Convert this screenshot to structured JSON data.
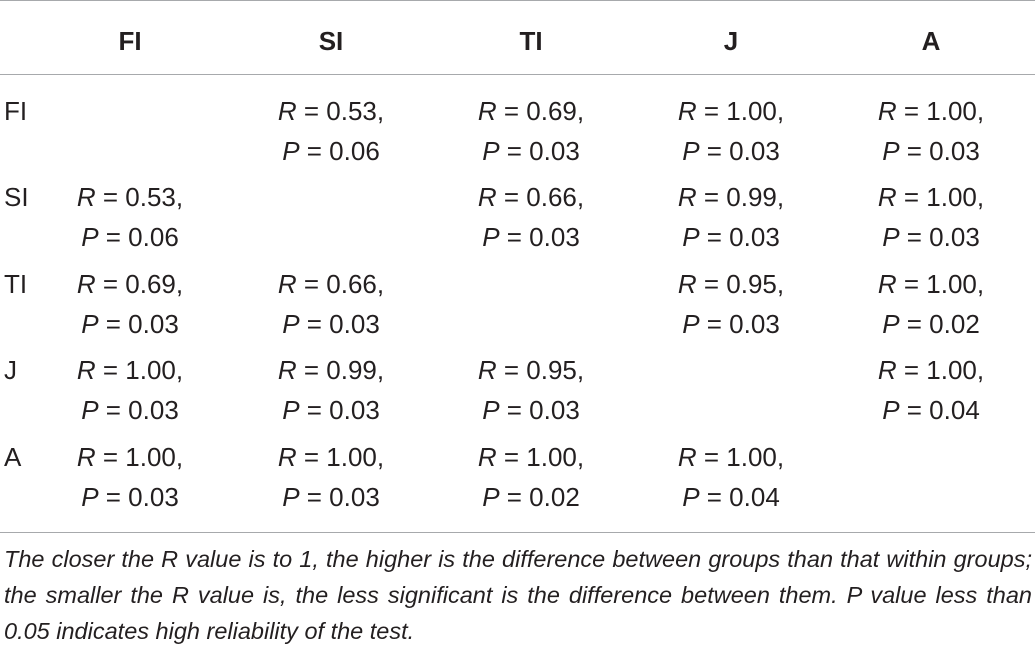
{
  "table": {
    "headers": [
      "FI",
      "SI",
      "TI",
      "J",
      "A"
    ],
    "rows": [
      {
        "label": "FI",
        "cells": [
          null,
          {
            "r": "R = 0.53,",
            "p": "P = 0.06"
          },
          {
            "r": "R = 0.69,",
            "p": "P = 0.03"
          },
          {
            "r": "R = 1.00,",
            "p": "P = 0.03"
          },
          {
            "r": "R = 1.00,",
            "p": "P = 0.03"
          }
        ]
      },
      {
        "label": "SI",
        "cells": [
          {
            "r": "R = 0.53,",
            "p": "P = 0.06"
          },
          null,
          {
            "r": "R = 0.66,",
            "p": "P = 0.03"
          },
          {
            "r": "R = 0.99,",
            "p": "P = 0.03"
          },
          {
            "r": "R = 1.00,",
            "p": "P = 0.03"
          }
        ]
      },
      {
        "label": "TI",
        "cells": [
          {
            "r": "R = 0.69,",
            "p": "P = 0.03"
          },
          {
            "r": "R = 0.66,",
            "p": "P = 0.03"
          },
          null,
          {
            "r": "R = 0.95,",
            "p": "P = 0.03"
          },
          {
            "r": "R = 1.00,",
            "p": "P = 0.02"
          }
        ]
      },
      {
        "label": "J",
        "cells": [
          {
            "r": "R = 1.00,",
            "p": "P = 0.03"
          },
          {
            "r": "R = 0.99,",
            "p": "P = 0.03"
          },
          {
            "r": "R = 0.95,",
            "p": "P = 0.03"
          },
          null,
          {
            "r": "R = 1.00,",
            "p": "P = 0.04"
          }
        ]
      },
      {
        "label": "A",
        "cells": [
          {
            "r": "R = 1.00,",
            "p": "P = 0.03"
          },
          {
            "r": "R = 1.00,",
            "p": "P = 0.03"
          },
          {
            "r": "R = 1.00,",
            "p": "P = 0.02"
          },
          {
            "r": "R = 1.00,",
            "p": "P = 0.04"
          },
          null
        ]
      }
    ]
  },
  "footnote": "The closer the R value is to 1, the higher is the difference between groups than that within groups; the smaller the R value is, the less significant is the difference between them. P value less than 0.05 indicates high reliability of the test."
}
